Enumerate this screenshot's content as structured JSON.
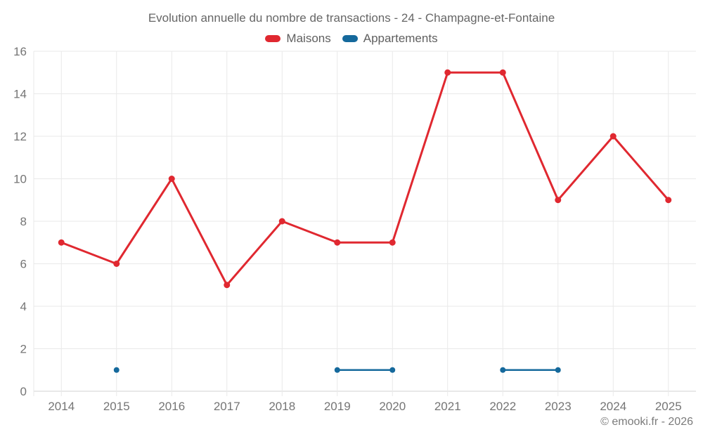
{
  "title": "Evolution annuelle du nombre de transactions - 24 - Champagne-et-Fontaine",
  "footer": "© emooki.fr - 2026",
  "legend": {
    "items": [
      {
        "label": "Maisons",
        "color": "#e02830"
      },
      {
        "label": "Appartements",
        "color": "#15699c"
      }
    ]
  },
  "axes": {
    "x_ticks": [
      "2014",
      "2015",
      "2016",
      "2017",
      "2018",
      "2019",
      "2020",
      "2021",
      "2022",
      "2023",
      "2024",
      "2025"
    ],
    "y_ticks": [
      "0",
      "2",
      "4",
      "6",
      "8",
      "10",
      "12",
      "14",
      "16"
    ]
  },
  "chart_data": {
    "type": "line",
    "categories": [
      2014,
      2015,
      2016,
      2017,
      2018,
      2019,
      2020,
      2021,
      2022,
      2023,
      2024,
      2025
    ],
    "series": [
      {
        "name": "Maisons",
        "color": "#e02830",
        "marker_radius": 4.5,
        "line_width": 3,
        "values": [
          7,
          6,
          10,
          5,
          8,
          7,
          7,
          15,
          15,
          9,
          12,
          9
        ]
      },
      {
        "name": "Appartements",
        "color": "#15699c",
        "marker_radius": 4,
        "line_width": 2.5,
        "values": [
          null,
          1,
          null,
          null,
          null,
          1,
          1,
          null,
          1,
          1,
          null,
          null
        ]
      }
    ],
    "title": "Evolution annuelle du nombre de transactions - 24 - Champagne-et-Fontaine",
    "xlabel": "",
    "ylabel": "",
    "ylim": [
      0,
      16
    ],
    "ytick_step": 2,
    "grid": true,
    "legend_position": "top"
  },
  "colors": {
    "background": "#ffffff",
    "grid": "#e9e9e9",
    "axis_line": "#d2d2d2",
    "title_text": "#666666",
    "tick_text": "#757575",
    "footer_text": "#7b7b7b"
  }
}
